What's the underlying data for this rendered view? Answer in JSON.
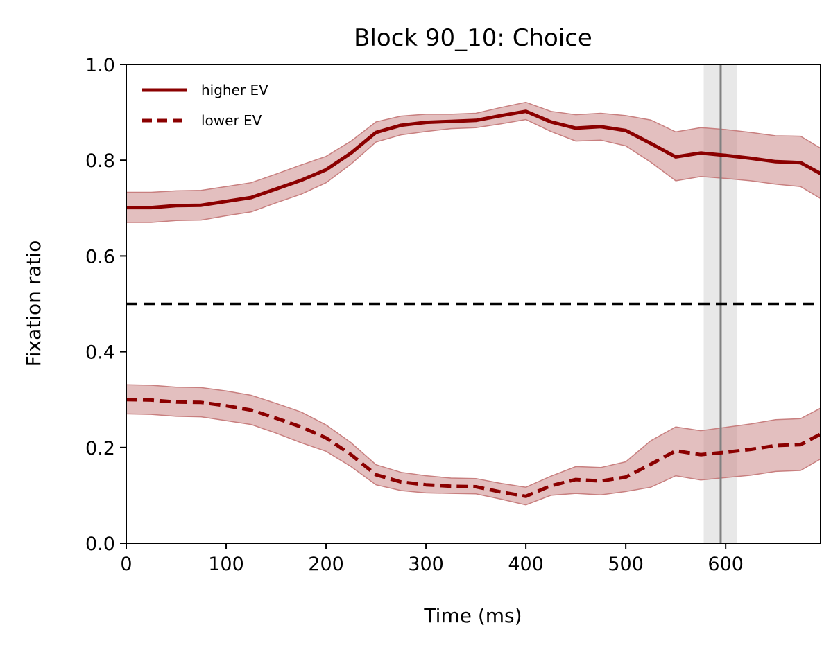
{
  "chart_data": {
    "type": "line",
    "title": "Block 90_10: Choice",
    "xlabel": "Time (ms)",
    "ylabel": "Fixation ratio",
    "xlim": [
      0,
      695
    ],
    "ylim": [
      0,
      1
    ],
    "xticks": [
      0,
      100,
      200,
      300,
      400,
      500,
      600
    ],
    "yticks": [
      0.0,
      0.2,
      0.4,
      0.6,
      0.8,
      1.0
    ],
    "xtick_labels": [
      "0",
      "100",
      "200",
      "300",
      "400",
      "500",
      "600"
    ],
    "ytick_labels": [
      "0.0",
      "0.2",
      "0.4",
      "0.6",
      "0.8",
      "1.0"
    ],
    "grid": false,
    "legend_position": "top-left",
    "reference_line": {
      "y": 0.5,
      "style": "dashed",
      "color": "#000000"
    },
    "vertical_marker": {
      "x": 595,
      "band": [
        578,
        611
      ],
      "color": "#808080"
    },
    "x": [
      0,
      25,
      50,
      75,
      100,
      125,
      150,
      175,
      200,
      225,
      250,
      275,
      300,
      325,
      350,
      375,
      400,
      425,
      450,
      475,
      500,
      525,
      550,
      575,
      600,
      625,
      650,
      675,
      695
    ],
    "series": [
      {
        "name": "higher EV",
        "style": "solid",
        "color": "#8b0000",
        "band_color": "#c87f7f",
        "values": [
          0.701,
          0.701,
          0.705,
          0.706,
          0.714,
          0.722,
          0.74,
          0.758,
          0.78,
          0.815,
          0.858,
          0.873,
          0.879,
          0.881,
          0.883,
          0.893,
          0.902,
          0.88,
          0.867,
          0.87,
          0.862,
          0.835,
          0.807,
          0.815,
          0.81,
          0.804,
          0.797,
          0.795,
          0.772
        ],
        "lower": [
          0.67,
          0.67,
          0.674,
          0.675,
          0.684,
          0.692,
          0.711,
          0.729,
          0.753,
          0.792,
          0.838,
          0.853,
          0.86,
          0.866,
          0.868,
          0.876,
          0.885,
          0.86,
          0.84,
          0.842,
          0.83,
          0.796,
          0.757,
          0.766,
          0.762,
          0.757,
          0.75,
          0.745,
          0.72
        ],
        "upper": [
          0.733,
          0.733,
          0.736,
          0.737,
          0.745,
          0.753,
          0.771,
          0.79,
          0.808,
          0.84,
          0.88,
          0.892,
          0.896,
          0.896,
          0.898,
          0.91,
          0.921,
          0.902,
          0.895,
          0.898,
          0.893,
          0.884,
          0.859,
          0.868,
          0.864,
          0.858,
          0.851,
          0.85,
          0.825
        ]
      },
      {
        "name": "lower EV",
        "style": "dashed",
        "color": "#8b0000",
        "band_color": "#c87f7f",
        "values": [
          0.3,
          0.299,
          0.295,
          0.294,
          0.287,
          0.278,
          0.261,
          0.243,
          0.22,
          0.185,
          0.143,
          0.128,
          0.122,
          0.119,
          0.118,
          0.107,
          0.098,
          0.12,
          0.133,
          0.13,
          0.138,
          0.165,
          0.193,
          0.185,
          0.19,
          0.196,
          0.204,
          0.206,
          0.228
        ],
        "lower": [
          0.27,
          0.269,
          0.265,
          0.264,
          0.256,
          0.248,
          0.23,
          0.21,
          0.192,
          0.16,
          0.122,
          0.11,
          0.105,
          0.104,
          0.103,
          0.092,
          0.08,
          0.1,
          0.104,
          0.101,
          0.108,
          0.117,
          0.141,
          0.132,
          0.137,
          0.142,
          0.15,
          0.152,
          0.176
        ],
        "upper": [
          0.331,
          0.33,
          0.326,
          0.325,
          0.318,
          0.309,
          0.292,
          0.274,
          0.247,
          0.21,
          0.164,
          0.148,
          0.141,
          0.136,
          0.135,
          0.125,
          0.117,
          0.14,
          0.16,
          0.158,
          0.17,
          0.214,
          0.243,
          0.235,
          0.242,
          0.249,
          0.258,
          0.26,
          0.282
        ]
      }
    ]
  }
}
